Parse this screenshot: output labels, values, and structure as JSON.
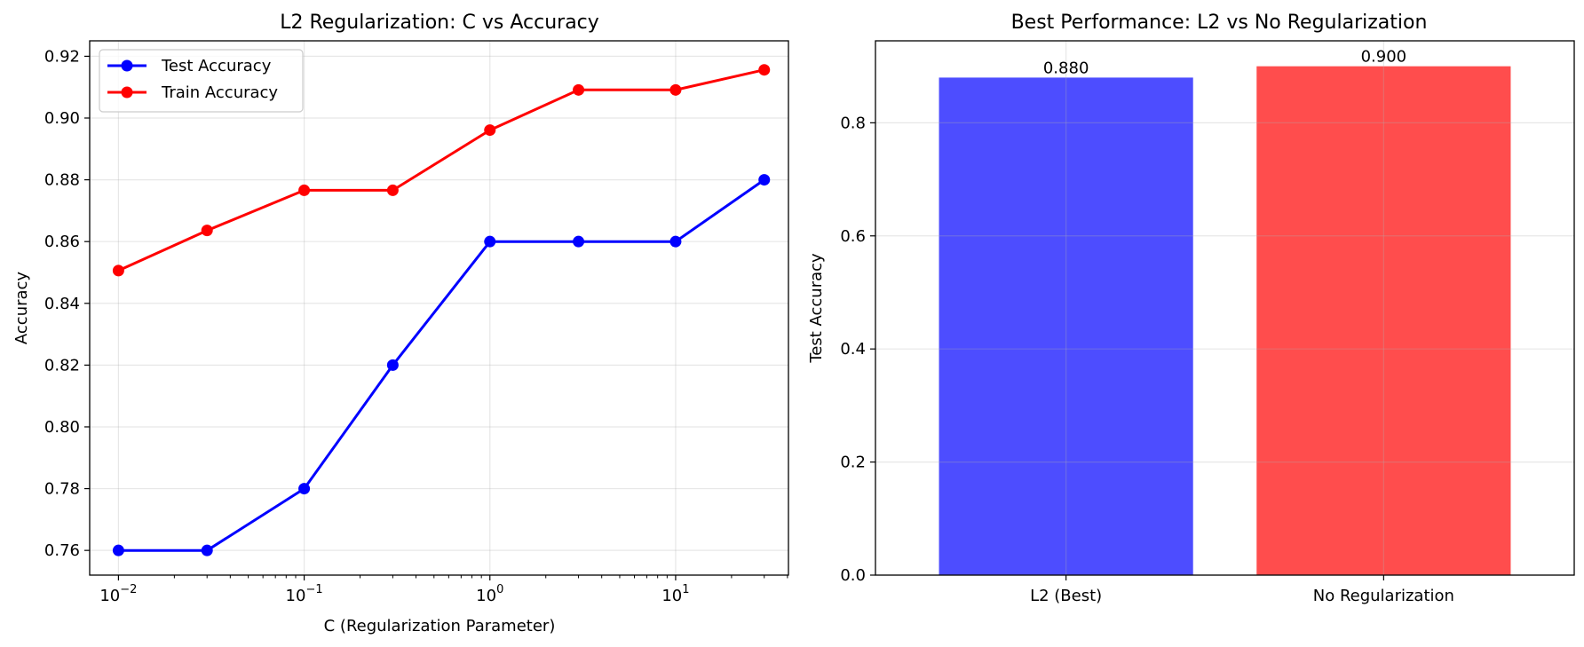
{
  "chart_data": [
    {
      "type": "line",
      "title": "L2 Regularization: C vs Accuracy",
      "xlabel": "C (Regularization Parameter)",
      "ylabel": "Accuracy",
      "xscale": "log",
      "x": [
        0.01,
        0.03,
        0.1,
        0.3,
        1,
        3,
        10,
        30
      ],
      "xticks": [
        {
          "value": 0.01,
          "base": "10",
          "exp": "−2"
        },
        {
          "value": 0.1,
          "base": "10",
          "exp": "−1"
        },
        {
          "value": 1,
          "base": "10",
          "exp": "0"
        },
        {
          "value": 10,
          "base": "10",
          "exp": "1"
        }
      ],
      "ylim": [
        0.752,
        0.925
      ],
      "yticks": [
        "0.76",
        "0.78",
        "0.80",
        "0.82",
        "0.84",
        "0.86",
        "0.88",
        "0.90",
        "0.92"
      ],
      "grid": true,
      "legend_position": "upper-left",
      "series": [
        {
          "name": "Test Accuracy",
          "color": "#0000ff",
          "marker": "circle",
          "values": [
            0.76,
            0.76,
            0.78,
            0.82,
            0.86,
            0.86,
            0.86,
            0.88
          ]
        },
        {
          "name": "Train Accuracy",
          "color": "#ff0000",
          "marker": "circle",
          "values": [
            0.8506,
            0.8636,
            0.8766,
            0.8766,
            0.8961,
            0.9091,
            0.9091,
            0.9156
          ]
        }
      ]
    },
    {
      "type": "bar",
      "title": "Best Performance: L2 vs No Regularization",
      "xlabel": "",
      "ylabel": "Test Accuracy",
      "categories": [
        "L2 (Best)",
        "No Regularization"
      ],
      "values": [
        0.88,
        0.9
      ],
      "value_labels": [
        "0.880",
        "0.900"
      ],
      "colors": [
        "#4d4dff",
        "#ff4d4d"
      ],
      "ylim": [
        0,
        0.945
      ],
      "yticks": [
        "0.0",
        "0.2",
        "0.4",
        "0.6",
        "0.8"
      ],
      "grid": true
    }
  ]
}
